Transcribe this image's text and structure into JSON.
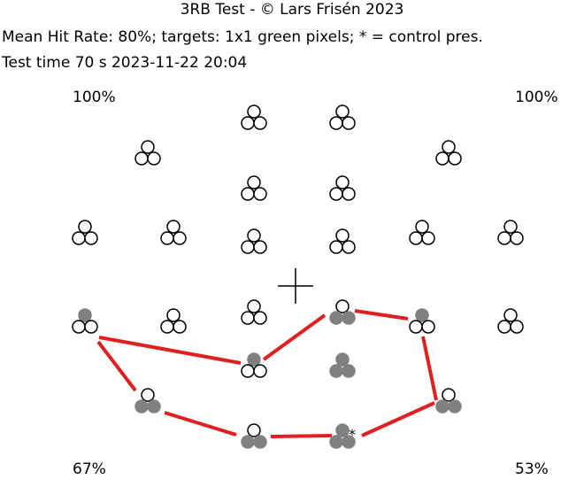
{
  "header": {
    "title": "3RB Test - © Lars Frisén 2023",
    "summary": "Mean Hit Rate: 80%; targets: 1x1 green pixels; * = control pres.",
    "test_time": "Test time 70 s 2023-11-22 20:04"
  },
  "quadrants": {
    "top_left": "100%",
    "top_right": "100%",
    "bottom_left": "67%",
    "bottom_right": "53%"
  },
  "colors": {
    "missed_dot": "#808080",
    "connect_line": "#e02020",
    "ring": "#000000"
  },
  "control_marker": "*",
  "test_points": [
    {
      "id": "r1-a",
      "missed": []
    },
    {
      "id": "r1-b",
      "missed": []
    },
    {
      "id": "r2-a",
      "missed": []
    },
    {
      "id": "r2-b",
      "missed": []
    },
    {
      "id": "r3-a",
      "missed": []
    },
    {
      "id": "r3-b",
      "missed": []
    },
    {
      "id": "r4-a",
      "missed": []
    },
    {
      "id": "r4-b",
      "missed": []
    },
    {
      "id": "r4-c",
      "missed": []
    },
    {
      "id": "r4-d",
      "missed": []
    },
    {
      "id": "r4-e",
      "missed": []
    },
    {
      "id": "r4-f",
      "missed": []
    },
    {
      "id": "r5-a",
      "missed": [
        "top"
      ]
    },
    {
      "id": "r5-b",
      "missed": []
    },
    {
      "id": "r5-c",
      "missed": []
    },
    {
      "id": "r5-d",
      "missed": [
        "left",
        "right"
      ]
    },
    {
      "id": "r5-e",
      "missed": [
        "top"
      ]
    },
    {
      "id": "r5-f",
      "missed": []
    },
    {
      "id": "r6-a",
      "missed": [
        "top"
      ]
    },
    {
      "id": "r6-b",
      "missed": [
        "top",
        "left",
        "right"
      ]
    },
    {
      "id": "r7-a",
      "missed": [
        "left",
        "right"
      ]
    },
    {
      "id": "r7-b",
      "missed": [
        "left",
        "right"
      ]
    },
    {
      "id": "r8-a",
      "missed": [
        "left",
        "right"
      ]
    },
    {
      "id": "r8-b",
      "missed": [
        "top",
        "left",
        "right"
      ],
      "control": true
    }
  ]
}
